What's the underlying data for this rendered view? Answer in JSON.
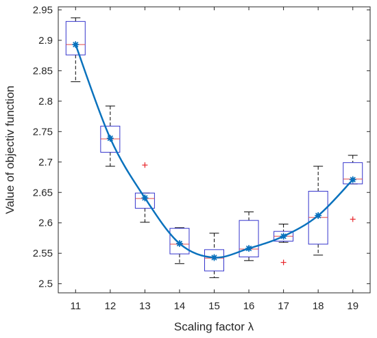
{
  "chart_data": {
    "type": "box",
    "title": "",
    "xlabel": "Scaling factor λ",
    "ylabel": "Value of objectiv function",
    "xlim": [
      10.5,
      19.5
    ],
    "ylim": [
      2.485,
      2.955
    ],
    "categories": [
      "11",
      "12",
      "13",
      "14",
      "15",
      "16",
      "17",
      "18",
      "19"
    ],
    "y_ticks": [
      "2.5",
      "2.55",
      "2.6",
      "2.65",
      "2.7",
      "2.75",
      "2.8",
      "2.85",
      "2.9",
      "2.95"
    ],
    "grid": false,
    "box_color": "#3333cc",
    "median_color": "#e04848",
    "outlier_color": "#e8262b",
    "line_color": "#0a72bd",
    "boxes": [
      {
        "x": 11,
        "whisker_low": 2.832,
        "q1": 2.876,
        "median": 2.893,
        "q3": 2.931,
        "whisker_high": 2.937,
        "outliers": []
      },
      {
        "x": 12,
        "whisker_low": 2.693,
        "q1": 2.716,
        "median": 2.738,
        "q3": 2.759,
        "whisker_high": 2.792,
        "outliers": []
      },
      {
        "x": 13,
        "whisker_low": 2.601,
        "q1": 2.624,
        "median": 2.64,
        "q3": 2.649,
        "whisker_high": 2.649,
        "outliers": [
          2.695
        ]
      },
      {
        "x": 14,
        "whisker_low": 2.533,
        "q1": 2.549,
        "median": 2.565,
        "q3": 2.591,
        "whisker_high": 2.592,
        "outliers": []
      },
      {
        "x": 15,
        "whisker_low": 2.51,
        "q1": 2.521,
        "median": 2.542,
        "q3": 2.556,
        "whisker_high": 2.583,
        "outliers": []
      },
      {
        "x": 16,
        "whisker_low": 2.538,
        "q1": 2.544,
        "median": 2.557,
        "q3": 2.604,
        "whisker_high": 2.618,
        "outliers": []
      },
      {
        "x": 17,
        "whisker_low": 2.568,
        "q1": 2.57,
        "median": 2.578,
        "q3": 2.586,
        "whisker_high": 2.598,
        "outliers": [
          2.535
        ]
      },
      {
        "x": 18,
        "whisker_low": 2.547,
        "q1": 2.565,
        "median": 2.609,
        "q3": 2.652,
        "whisker_high": 2.693,
        "outliers": []
      },
      {
        "x": 19,
        "whisker_low": 2.664,
        "q1": 2.664,
        "median": 2.672,
        "q3": 2.699,
        "whisker_high": 2.711,
        "outliers": [
          2.606
        ]
      }
    ],
    "mean_line": {
      "x": [
        11,
        12,
        13,
        14,
        15,
        16,
        17,
        18,
        19
      ],
      "y": [
        2.893,
        2.739,
        2.641,
        2.566,
        2.543,
        2.558,
        2.578,
        2.612,
        2.671
      ]
    }
  }
}
